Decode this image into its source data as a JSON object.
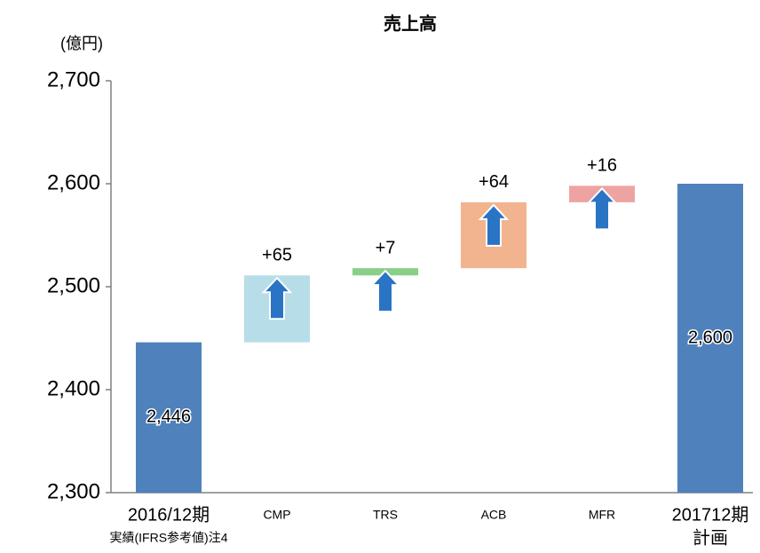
{
  "chart_data": {
    "type": "waterfall",
    "title": "売上高",
    "y_axis_label": "(億円)",
    "categories": [
      "2016/12期",
      "CMP",
      "TRS",
      "ACB",
      "MFR",
      "201712期"
    ],
    "sublabels": [
      "実績(IFRS参考値)注4",
      null,
      null,
      null,
      null,
      "計画"
    ],
    "values": [
      2446,
      65,
      7,
      64,
      16,
      2600
    ],
    "value_labels": [
      "2,446",
      "+65",
      "+7",
      "+64",
      "+16",
      "2,600"
    ],
    "kinds": [
      "total",
      "delta",
      "delta",
      "delta",
      "delta",
      "total"
    ],
    "colors": [
      "#4f81bd",
      "#b7dde8",
      "#88cf88",
      "#f1b48e",
      "#eea3a3",
      "#4f81bd"
    ],
    "ylim": [
      2300,
      2700
    ],
    "yticks": [
      {
        "value": 2300,
        "label": "2,300"
      },
      {
        "value": 2400,
        "label": "2,400"
      },
      {
        "value": 2500,
        "label": "2,500"
      },
      {
        "value": 2600,
        "label": "2,600"
      },
      {
        "value": 2700,
        "label": "2,700"
      }
    ]
  }
}
